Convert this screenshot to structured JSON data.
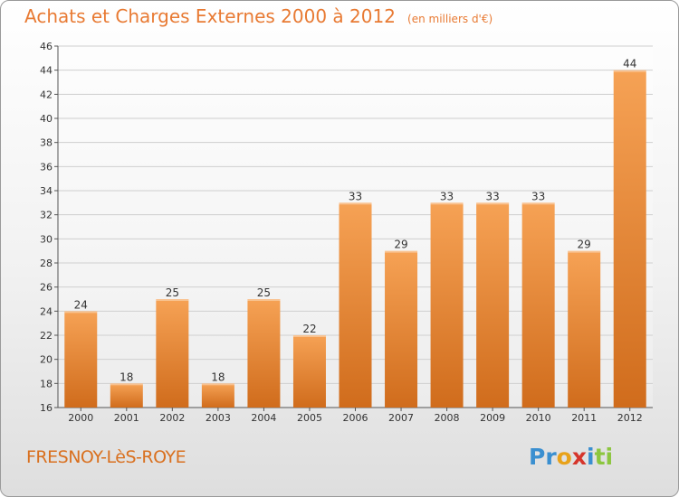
{
  "header": {
    "title": "Achats et Charges Externes 2000 à 2012",
    "unit": "(en milliers d'€)"
  },
  "footer": {
    "commune": "FRESNOY-LèS-ROYE",
    "logo_letters": [
      {
        "char": "P",
        "color": "#3a8fd0"
      },
      {
        "char": "r",
        "color": "#3a8fd0"
      },
      {
        "char": "o",
        "color": "#e8a21a"
      },
      {
        "char": "x",
        "color": "#d6352b"
      },
      {
        "char": "i",
        "color": "#3a8fd0"
      },
      {
        "char": "t",
        "color": "#8cc63f"
      },
      {
        "char": "i",
        "color": "#8cc63f"
      }
    ]
  },
  "colors": {
    "accent": "#e87a33",
    "bar_top": "#f6a255",
    "bar_bottom": "#d06c1c",
    "grid": "#cfcfcf"
  },
  "chart_data": {
    "type": "bar",
    "title": "Achats et Charges Externes 2000 à 2012",
    "subtitle": "(en milliers d'€)",
    "categories": [
      "2000",
      "2001",
      "2002",
      "2003",
      "2004",
      "2005",
      "2006",
      "2007",
      "2008",
      "2009",
      "2010",
      "2011",
      "2012"
    ],
    "values": [
      24,
      18,
      25,
      18,
      25,
      22,
      33,
      29,
      33,
      33,
      33,
      29,
      44
    ],
    "ylim": [
      16,
      46
    ],
    "yticks": [
      16,
      18,
      20,
      22,
      24,
      26,
      28,
      30,
      32,
      34,
      36,
      38,
      40,
      42,
      44,
      46
    ],
    "grid": true,
    "data_labels": true
  }
}
